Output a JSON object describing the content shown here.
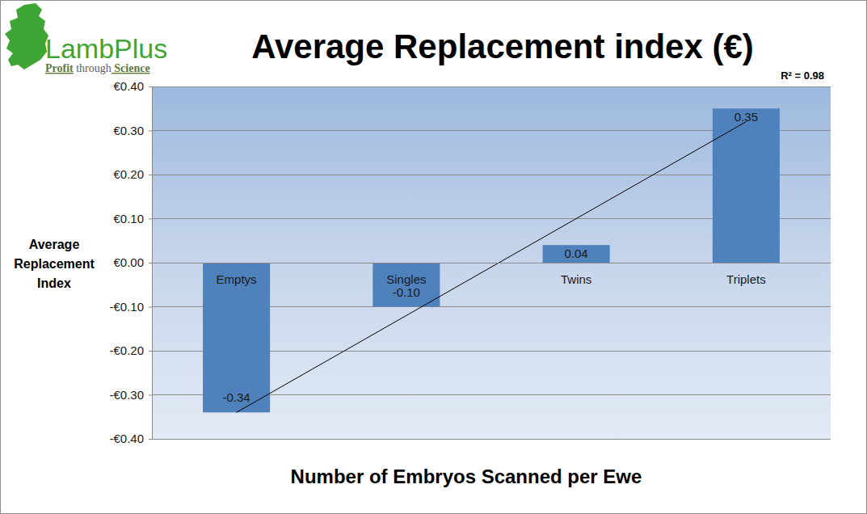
{
  "chart_data": {
    "type": "bar",
    "title": "Average Replacement index (€)",
    "logo": {
      "name": "LambPlus",
      "tagline": [
        "Profit",
        "through",
        "Science"
      ]
    },
    "annotation": "R² = 0.98",
    "x_label": "Number of Embryos Scanned per Ewe",
    "y_label": "Average Replacement Index",
    "categories": [
      "Emptys",
      "Singles",
      "Twins",
      "Triplets"
    ],
    "values": [
      -0.34,
      -0.1,
      0.04,
      0.35
    ],
    "value_labels": [
      "-0.34",
      "-0.10",
      "0.04",
      "0.35"
    ],
    "trend_values": [
      -0.34,
      -0.12,
      0.1,
      0.32
    ],
    "color": "#4f81bd",
    "ylim": [
      -0.4,
      0.4
    ],
    "yticks": [
      {
        "value": -0.4,
        "label": "-€0.40"
      },
      {
        "value": -0.3,
        "label": "-€0.30"
      },
      {
        "value": -0.2,
        "label": "-€0.20"
      },
      {
        "value": -0.1,
        "label": "-€0.10"
      },
      {
        "value": 0,
        "label": "€0.00"
      },
      {
        "value": 0.1,
        "label": "€0.10"
      },
      {
        "value": 0.2,
        "label": "€0.20"
      },
      {
        "value": 0.3,
        "label": "€0.30"
      },
      {
        "value": 0.4,
        "label": "€0.40"
      }
    ],
    "grid": true,
    "data_labels": true
  }
}
